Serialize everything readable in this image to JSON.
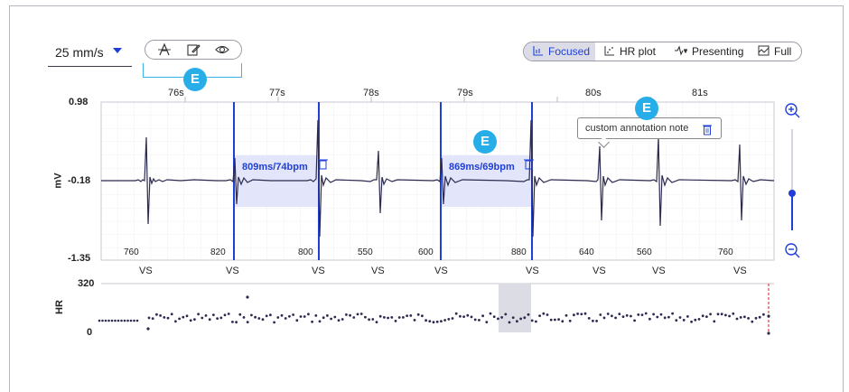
{
  "controls": {
    "speed_value": "25 mm/s",
    "tool_icons": [
      "text-annotation-icon",
      "edit-note-icon",
      "eye-icon"
    ],
    "badge_letter": "E"
  },
  "views": {
    "items": [
      {
        "label": "Focused",
        "icon": "focused-chart-icon",
        "active": true
      },
      {
        "label": "HR plot",
        "icon": "scatter-plot-icon",
        "active": false
      },
      {
        "label": "Presenting",
        "icon": "heartbeat-icon",
        "active": false
      },
      {
        "label": "Full",
        "icon": "full-chart-icon",
        "active": false
      }
    ]
  },
  "ecg": {
    "seconds": [
      "76s",
      "77s",
      "78s",
      "79s",
      "80s",
      "81s"
    ],
    "y_top": "0.98",
    "y_mid": "-0.18",
    "y_bottom": "-1.35",
    "y_unit": "mV",
    "intervals": [
      "760",
      "820",
      "800",
      "550",
      "600",
      "880",
      "640",
      "560",
      "760"
    ],
    "beat_labels": [
      "VS",
      "VS",
      "VS",
      "VS",
      "VS",
      "VS",
      "VS",
      "VS",
      "VS"
    ],
    "measurements": [
      {
        "label": "809ms/74bpm"
      },
      {
        "label": "869ms/69bpm"
      }
    ],
    "annotation_note": "custom annotation note"
  },
  "hr": {
    "y_top": "320",
    "y_bottom": "0",
    "y_unit": "HR"
  },
  "colors": {
    "accent": "#1f3fd6",
    "trace": "#2b2a4f",
    "badge": "#27aee8",
    "selection": "#e3e5fa",
    "marker": "#d0211f"
  }
}
